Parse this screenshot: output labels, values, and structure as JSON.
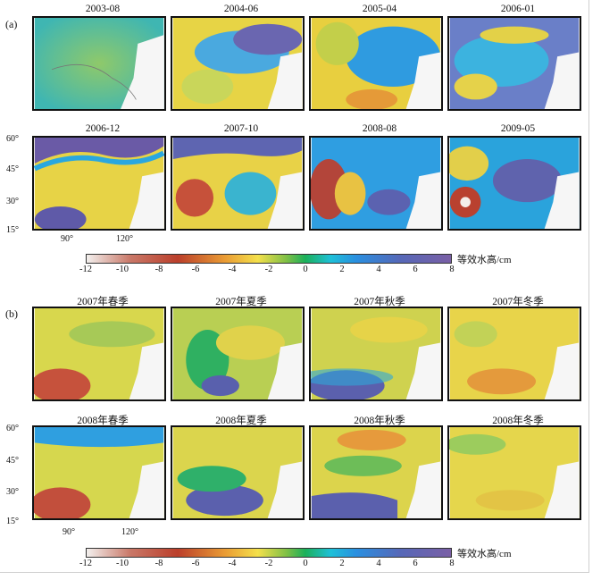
{
  "panel_a": {
    "label": "(a)",
    "titles": [
      "2003-08",
      "2004-06",
      "2005-04",
      "2006-01",
      "2006-12",
      "2007-10",
      "2008-08",
      "2009-05"
    ],
    "lat_ticks": [
      "60°",
      "45°",
      "30°",
      "15°"
    ],
    "lon_ticks": [
      "90°",
      "120°"
    ]
  },
  "panel_b": {
    "label": "(b)",
    "titles": [
      "2007年春季",
      "2007年夏季",
      "2007年秋季",
      "2007年冬季",
      "2008年春季",
      "2008年夏季",
      "2008年秋季",
      "2008年冬季"
    ],
    "lat_ticks": [
      "60°",
      "45°",
      "30°",
      "15°"
    ],
    "lon_ticks": [
      "90°",
      "120°"
    ]
  },
  "colorbar": {
    "ticks": [
      "-12",
      "-10",
      "-8",
      "-6",
      "-4",
      "-2",
      "0",
      "2",
      "4",
      "6",
      "8"
    ],
    "unit": "等效水高/cm"
  }
}
